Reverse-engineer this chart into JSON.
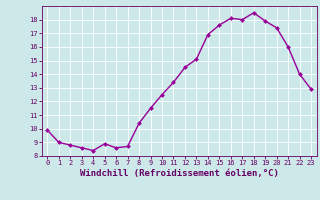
{
  "x": [
    0,
    1,
    2,
    3,
    4,
    5,
    6,
    7,
    8,
    9,
    10,
    11,
    12,
    13,
    14,
    15,
    16,
    17,
    18,
    19,
    20,
    21,
    22,
    23
  ],
  "y": [
    9.9,
    9.0,
    8.8,
    8.6,
    8.4,
    8.9,
    8.6,
    8.7,
    10.4,
    11.5,
    12.5,
    13.4,
    14.5,
    15.1,
    16.9,
    17.6,
    18.1,
    18.0,
    18.5,
    17.9,
    17.4,
    16.0,
    14.0,
    12.9
  ],
  "line_color": "#990099",
  "marker": "D",
  "marker_size": 2,
  "linewidth": 1.0,
  "xlabel": "Windchill (Refroidissement éolien,°C)",
  "xlabel_fontsize": 6.5,
  "xlabel_color": "#660066",
  "xlim": [
    -0.5,
    23.5
  ],
  "ylim": [
    8.0,
    19.0
  ],
  "yticks": [
    8,
    9,
    10,
    11,
    12,
    13,
    14,
    15,
    16,
    17,
    18
  ],
  "xticks": [
    0,
    1,
    2,
    3,
    4,
    5,
    6,
    7,
    8,
    9,
    10,
    11,
    12,
    13,
    14,
    15,
    16,
    17,
    18,
    19,
    20,
    21,
    22,
    23
  ],
  "bg_color": "#cce8e8",
  "grid_color": "#ffffff",
  "tick_color": "#660066",
  "tick_fontsize": 5,
  "spine_color": "#660066"
}
